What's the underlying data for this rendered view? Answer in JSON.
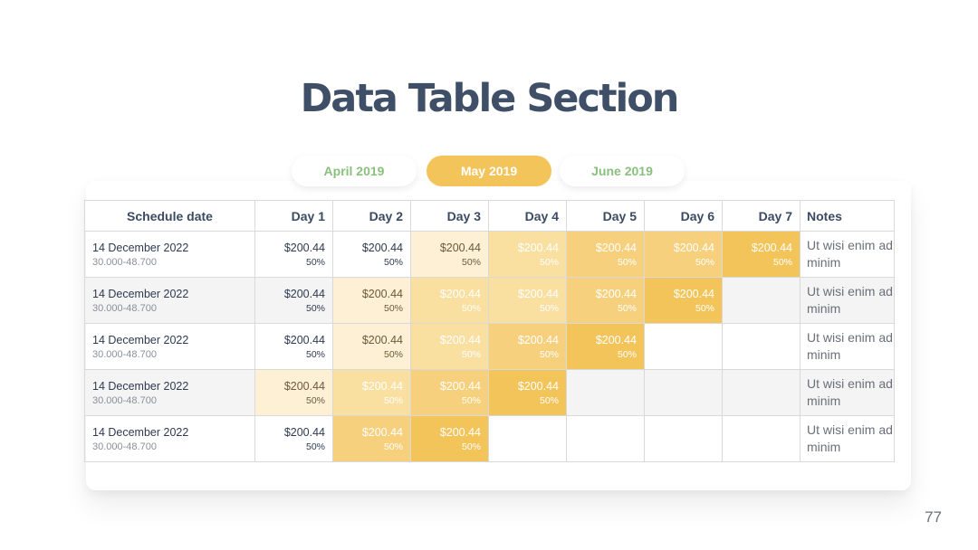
{
  "title": "Data Table Section",
  "tabs": [
    {
      "label": "April 2019",
      "active": false
    },
    {
      "label": "May 2019",
      "active": true
    },
    {
      "label": "June 2019",
      "active": false
    }
  ],
  "table": {
    "headers": [
      "Schedule date",
      "Day 1",
      "Day 2",
      "Day 3",
      "Day 4",
      "Day 5",
      "Day 6",
      "Day 7",
      "Notes"
    ],
    "rows": [
      {
        "date": "14 December 2022",
        "range": "30.000-48.700",
        "cells": [
          {
            "amount": "$200.44",
            "pct": "50%",
            "level": 0
          },
          {
            "amount": "$200.44",
            "pct": "50%",
            "level": 0
          },
          {
            "amount": "$200.44",
            "pct": "50%",
            "level": 1
          },
          {
            "amount": "$200.44",
            "pct": "50%",
            "level": 2
          },
          {
            "amount": "$200.44",
            "pct": "50%",
            "level": 3
          },
          {
            "amount": "$200.44",
            "pct": "50%",
            "level": 3
          },
          {
            "amount": "$200.44",
            "pct": "50%",
            "level": 4
          }
        ],
        "note": "Ut wisi enim ad minim"
      },
      {
        "date": "14 December 2022",
        "range": "30.000-48.700",
        "cells": [
          {
            "amount": "$200.44",
            "pct": "50%",
            "level": 0
          },
          {
            "amount": "$200.44",
            "pct": "50%",
            "level": 1
          },
          {
            "amount": "$200.44",
            "pct": "50%",
            "level": 2
          },
          {
            "amount": "$200.44",
            "pct": "50%",
            "level": 2
          },
          {
            "amount": "$200.44",
            "pct": "50%",
            "level": 3
          },
          {
            "amount": "$200.44",
            "pct": "50%",
            "level": 4
          },
          {
            "amount": "",
            "pct": "",
            "level": 0
          }
        ],
        "note": "Ut wisi enim ad minim"
      },
      {
        "date": "14 December 2022",
        "range": "30.000-48.700",
        "cells": [
          {
            "amount": "$200.44",
            "pct": "50%",
            "level": 0
          },
          {
            "amount": "$200.44",
            "pct": "50%",
            "level": 1
          },
          {
            "amount": "$200.44",
            "pct": "50%",
            "level": 2
          },
          {
            "amount": "$200.44",
            "pct": "50%",
            "level": 3
          },
          {
            "amount": "$200.44",
            "pct": "50%",
            "level": 4
          },
          {
            "amount": "",
            "pct": "",
            "level": 0
          },
          {
            "amount": "",
            "pct": "",
            "level": 0
          }
        ],
        "note": "Ut wisi enim ad minim"
      },
      {
        "date": "14 December 2022",
        "range": "30.000-48.700",
        "cells": [
          {
            "amount": "$200.44",
            "pct": "50%",
            "level": 1
          },
          {
            "amount": "$200.44",
            "pct": "50%",
            "level": 2
          },
          {
            "amount": "$200.44",
            "pct": "50%",
            "level": 3
          },
          {
            "amount": "$200.44",
            "pct": "50%",
            "level": 4
          },
          {
            "amount": "",
            "pct": "",
            "level": 0
          },
          {
            "amount": "",
            "pct": "",
            "level": 0
          },
          {
            "amount": "",
            "pct": "",
            "level": 0
          }
        ],
        "note": "Ut wisi enim ad minim"
      },
      {
        "date": "14 December 2022",
        "range": "30.000-48.700",
        "cells": [
          {
            "amount": "$200.44",
            "pct": "50%",
            "level": 0
          },
          {
            "amount": "$200.44",
            "pct": "50%",
            "level": 3
          },
          {
            "amount": "$200.44",
            "pct": "50%",
            "level": 4
          },
          {
            "amount": "",
            "pct": "",
            "level": 0
          },
          {
            "amount": "",
            "pct": "",
            "level": 0
          },
          {
            "amount": "",
            "pct": "",
            "level": 0
          },
          {
            "amount": "",
            "pct": "",
            "level": 0
          }
        ],
        "note": "Ut wisi enim ad minim"
      }
    ]
  },
  "page_number": "77"
}
